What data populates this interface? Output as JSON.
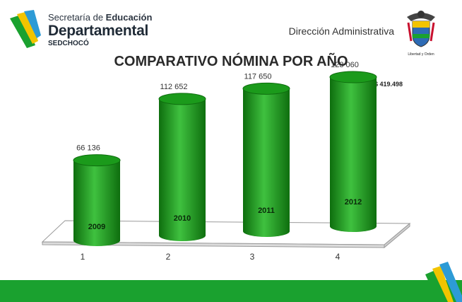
{
  "header": {
    "logo_line1_prefix": "Secretaría de ",
    "logo_line1_bold": "Educación",
    "logo_line2": "Departamental",
    "logo_line3": "SEDCHOCÓ",
    "subtitle": "Dirección Administrativa",
    "coat_motto": "Libertad y Orden"
  },
  "colors": {
    "bar": "#1b9a1b",
    "bar_dark": "#0e6e0e",
    "bar_light": "#3fc13f",
    "footer_bar": "#1aa12f"
  },
  "chart_data": {
    "type": "bar",
    "style": "3d-cylinder",
    "title": "COMPARATIVO NÓMINA POR AÑO",
    "annotation": "Valor Total: $ 419.498",
    "categories": [
      "1",
      "2",
      "3",
      "4"
    ],
    "values": [
      66136,
      112652,
      117650,
      123060
    ],
    "value_labels": [
      "66 136",
      "112 652",
      "117 650",
      "123 060"
    ],
    "bar_labels": [
      "2009",
      "2010",
      "2011",
      "2012"
    ],
    "ylim": [
      0,
      140000
    ],
    "grid": false,
    "legend": "none"
  }
}
